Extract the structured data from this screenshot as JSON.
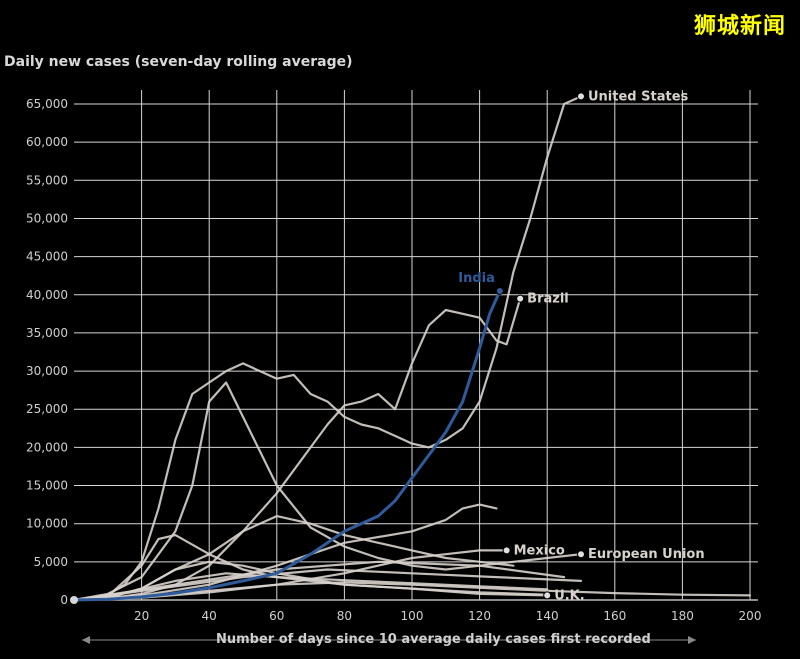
{
  "brand": "狮城新闻",
  "chart_data": {
    "type": "line",
    "ylabel": "Daily new cases (seven-day rolling average)",
    "xlabel": "Number of days since 10 average daily cases first recorded",
    "xlim": [
      0,
      200
    ],
    "ylim": [
      0,
      65000
    ],
    "x_ticks": [
      20,
      40,
      60,
      80,
      100,
      120,
      140,
      160,
      180,
      200
    ],
    "y_ticks": [
      0,
      5000,
      10000,
      15000,
      20000,
      25000,
      30000,
      35000,
      40000,
      45000,
      50000,
      55000,
      60000,
      65000
    ],
    "y_tick_labels": [
      "0",
      "5,000",
      "10,000",
      "15,000",
      "20,000",
      "25,000",
      "30,000",
      "35,000",
      "40,000",
      "45,000",
      "50,000",
      "55,000",
      "60,000",
      "65,000"
    ],
    "grid": true,
    "highlight_color": "#2f5b9a",
    "base_color": "#d8d2cc",
    "series": [
      {
        "name": "India",
        "highlight": true,
        "x": [
          0,
          10,
          20,
          30,
          40,
          50,
          60,
          70,
          80,
          90,
          95,
          100,
          105,
          110,
          115,
          120,
          123,
          126
        ],
        "y": [
          0,
          100,
          400,
          900,
          1600,
          2500,
          3500,
          6000,
          9000,
          11000,
          13000,
          16000,
          19000,
          22000,
          26000,
          33000,
          37500,
          40500
        ]
      },
      {
        "name": "United States",
        "x": [
          0,
          5,
          10,
          15,
          20,
          25,
          30,
          35,
          40,
          45,
          50,
          55,
          60,
          65,
          70,
          75,
          80,
          85,
          90,
          95,
          100,
          105,
          110,
          115,
          120,
          125,
          130,
          135,
          140,
          145,
          150
        ],
        "y": [
          0,
          200,
          700,
          2000,
          5000,
          12000,
          21000,
          27000,
          28500,
          30000,
          31000,
          30000,
          29000,
          29500,
          27000,
          26000,
          24000,
          23000,
          22500,
          21500,
          20500,
          20000,
          21000,
          22500,
          26000,
          33000,
          43000,
          50000,
          58000,
          65000,
          66000
        ]
      },
      {
        "name": "Brazil",
        "x": [
          0,
          10,
          20,
          30,
          40,
          50,
          60,
          70,
          75,
          80,
          85,
          90,
          95,
          100,
          105,
          110,
          115,
          120,
          125,
          128,
          132
        ],
        "y": [
          0,
          200,
          800,
          2000,
          4500,
          9000,
          14000,
          20000,
          23000,
          25500,
          26000,
          27000,
          25000,
          31000,
          36000,
          38000,
          37500,
          37000,
          34000,
          33500,
          39500
        ]
      },
      {
        "name": "Mexico",
        "x": [
          0,
          20,
          40,
          60,
          80,
          100,
          110,
          120,
          128
        ],
        "y": [
          0,
          300,
          1000,
          2000,
          3500,
          5500,
          6000,
          6500,
          6500
        ]
      },
      {
        "name": "European Union",
        "x": [
          0,
          10,
          20,
          30,
          35,
          40,
          45,
          50,
          60,
          70,
          80,
          90,
          100,
          110,
          120,
          130,
          140,
          150
        ],
        "y": [
          0,
          800,
          3000,
          9000,
          15000,
          26000,
          28500,
          24000,
          15000,
          9500,
          7000,
          5500,
          4500,
          4000,
          4500,
          5000,
          5500,
          6000
        ]
      },
      {
        "name": "U.K.",
        "x": [
          0,
          10,
          20,
          30,
          40,
          50,
          60,
          80,
          100,
          120,
          140
        ],
        "y": [
          0,
          300,
          1500,
          4000,
          5000,
          4500,
          3500,
          2000,
          1500,
          800,
          600
        ]
      },
      {
        "name": "",
        "x": [
          0,
          20,
          40,
          60,
          70,
          80,
          100,
          110,
          115,
          120,
          125
        ],
        "y": [
          0,
          600,
          2000,
          4500,
          6000,
          7500,
          9000,
          10500,
          12000,
          12500,
          12000
        ]
      },
      {
        "name": "",
        "x": [
          0,
          10,
          20,
          30,
          40,
          50,
          60,
          70,
          80,
          90,
          100,
          110,
          120,
          130
        ],
        "y": [
          0,
          300,
          1500,
          4000,
          6000,
          9000,
          11000,
          10000,
          8500,
          7500,
          6500,
          5500,
          5000,
          4500
        ]
      },
      {
        "name": "",
        "x": [
          0,
          10,
          20,
          25,
          30,
          40,
          50,
          60,
          80,
          100,
          120,
          140
        ],
        "y": [
          0,
          500,
          4500,
          8000,
          8500,
          6000,
          4000,
          3000,
          2000,
          1500,
          1000,
          700
        ]
      },
      {
        "name": "",
        "x": [
          0,
          20,
          40,
          60,
          80,
          100,
          120,
          140,
          160,
          180,
          200
        ],
        "y": [
          0,
          400,
          1200,
          2000,
          2300,
          2000,
          1600,
          1200,
          900,
          700,
          600
        ]
      },
      {
        "name": "",
        "x": [
          0,
          15,
          30,
          45,
          60,
          80,
          100,
          120,
          140
        ],
        "y": [
          0,
          900,
          2500,
          3500,
          3000,
          2600,
          2200,
          1800,
          1400
        ]
      },
      {
        "name": "",
        "x": [
          0,
          25,
          50,
          75,
          100,
          125,
          150
        ],
        "y": [
          0,
          1500,
          3000,
          4000,
          3500,
          3000,
          2500
        ]
      },
      {
        "name": "",
        "x": [
          0,
          30,
          60,
          90,
          120,
          145
        ],
        "y": [
          0,
          2000,
          4000,
          5000,
          4500,
          3000
        ]
      }
    ],
    "labels": [
      {
        "text": "United States",
        "series": "United States",
        "x": 150,
        "y": 66000
      },
      {
        "text": "India",
        "series": "India",
        "x": 126,
        "y": 40500
      },
      {
        "text": "Brazil",
        "series": "Brazil",
        "x": 132,
        "y": 39500
      },
      {
        "text": "Mexico",
        "series": "Mexico",
        "x": 128,
        "y": 6500
      },
      {
        "text": "European Union",
        "series": "European Union",
        "x": 150,
        "y": 6000
      },
      {
        "text": "U.K.",
        "series": "U.K.",
        "x": 140,
        "y": 600
      }
    ]
  }
}
